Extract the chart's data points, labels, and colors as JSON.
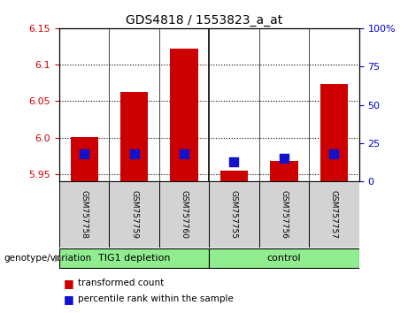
{
  "title": "GDS4818 / 1553823_a_at",
  "samples": [
    "GSM757758",
    "GSM757759",
    "GSM757760",
    "GSM757755",
    "GSM757756",
    "GSM757757"
  ],
  "red_values": [
    6.001,
    6.063,
    6.122,
    5.955,
    5.968,
    6.073
  ],
  "blue_values_pct": [
    18,
    18,
    18,
    13,
    15,
    18
  ],
  "ylim_left": [
    5.94,
    6.15
  ],
  "ylim_right": [
    0,
    100
  ],
  "yticks_left": [
    5.95,
    6.0,
    6.05,
    6.1,
    6.15
  ],
  "yticks_right": [
    0,
    25,
    50,
    75,
    100
  ],
  "ytick_labels_right": [
    "0",
    "25",
    "50",
    "75",
    "100%"
  ],
  "bar_bottom": 5.94,
  "bar_color": "#CC0000",
  "dot_color": "#1111CC",
  "bar_width": 0.55,
  "dot_size": 45,
  "bg_color": "#d3d3d3",
  "plot_bg": "white",
  "left_tick_color": "#CC0000",
  "right_tick_color": "#0000CC",
  "legend_items": [
    "transformed count",
    "percentile rank within the sample"
  ],
  "xlabel_area": "genotype/variation",
  "group1_label": "TIG1 depletion",
  "group2_label": "control",
  "group_color": "#90EE90"
}
